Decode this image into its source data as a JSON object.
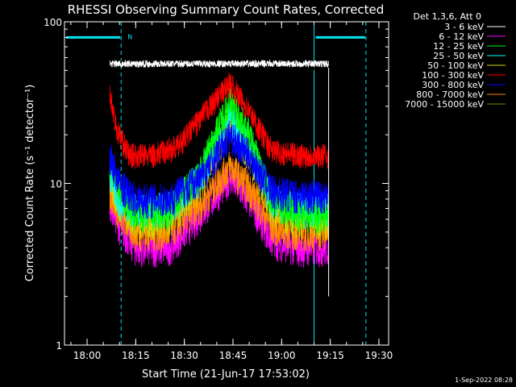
{
  "colors": {
    "background": "#000000",
    "axes": "#ffffff",
    "attenuator_marker": "#00e5ee",
    "series": [
      "#000000",
      "#ff00ff",
      "#00ff00",
      "#00ffff",
      "#d6d600",
      "#ff0000",
      "#0000ff",
      "#ff8800",
      "#808000"
    ]
  },
  "chart_data": {
    "type": "line",
    "title": "RHESSI Observing Summary Count Rates, Corrected",
    "xlabel": "Start Time (21-Jun-17 17:53:02)",
    "ylabel": "Corrected Count Rate (s⁻¹ detector⁻¹)",
    "y_scale": "log",
    "ylim": [
      1,
      100
    ],
    "y_ticks": [
      1,
      10,
      100
    ],
    "y_tick_labels": [
      "1",
      "10",
      "100"
    ],
    "x_ticks": [
      "18:00",
      "18:15",
      "18:30",
      "18:45",
      "19:00",
      "19:15",
      "19:30"
    ],
    "xlim": [
      "17:53:02",
      "19:33:00"
    ],
    "legend": {
      "header": "Det 1,3,6, Att 0",
      "position": "top-right, outside plot"
    },
    "series": [
      {
        "name": "3 - 6 keV",
        "color": "#000000",
        "start": "18:07:00",
        "end": "19:14:30",
        "times": [
          "18:07",
          "18:15",
          "18:30",
          "18:40",
          "18:44",
          "18:50",
          "19:00",
          "19:14"
        ],
        "values": [
          55,
          56,
          56,
          56,
          57,
          56,
          53,
          52
        ]
      },
      {
        "name": "6 - 12 keV",
        "color": "#ff00ff",
        "start": "18:07:00",
        "end": "19:14:30",
        "times": [
          "18:07",
          "18:10",
          "18:15",
          "18:25",
          "18:35",
          "18:44",
          "18:50",
          "18:57",
          "19:05",
          "19:14"
        ],
        "values": [
          8,
          5.5,
          4,
          4,
          6.5,
          11,
          8,
          4.5,
          4,
          4
        ]
      },
      {
        "name": "12 - 25 keV",
        "color": "#00ff00",
        "start": "18:07:00",
        "end": "19:14:30",
        "times": [
          "18:07",
          "18:10",
          "18:15",
          "18:25",
          "18:35",
          "18:44",
          "18:50",
          "18:57",
          "19:05",
          "19:14"
        ],
        "values": [
          14,
          9,
          6.5,
          6.5,
          12,
          33,
          20,
          8,
          6.5,
          6.5
        ]
      },
      {
        "name": "25 - 50 keV",
        "color": "#00ffff",
        "start": "18:07:00",
        "end": "19:14:30",
        "times": [
          "18:07",
          "18:10",
          "18:15",
          "18:25",
          "18:35",
          "18:44",
          "18:50",
          "18:57",
          "19:05",
          "19:14"
        ],
        "values": [
          12,
          8,
          7,
          7,
          11,
          27,
          17,
          8,
          7,
          7
        ]
      },
      {
        "name": "50 - 100 keV",
        "color": "#d6d600",
        "start": "18:07:00",
        "end": "19:14:30",
        "times": [
          "18:07",
          "18:10",
          "18:15",
          "18:25",
          "18:35",
          "18:44",
          "18:50",
          "18:57",
          "19:05",
          "19:14"
        ],
        "values": [
          11,
          7.5,
          6,
          6,
          10,
          24,
          15,
          7,
          6,
          6
        ]
      },
      {
        "name": "100 - 300 keV",
        "color": "#ff0000",
        "start": "18:07:00",
        "end": "19:14:30",
        "times": [
          "18:07",
          "18:09",
          "18:13",
          "18:20",
          "18:28",
          "18:36",
          "18:44",
          "18:50",
          "18:57",
          "19:05",
          "19:14"
        ],
        "values": [
          38,
          22,
          15,
          15,
          17,
          27,
          42,
          28,
          16,
          15,
          15
        ]
      },
      {
        "name": "300 - 800 keV",
        "color": "#0000ff",
        "start": "18:07:00",
        "end": "19:14:30",
        "times": [
          "18:07",
          "18:10",
          "18:15",
          "18:25",
          "18:35",
          "18:44",
          "18:50",
          "18:57",
          "19:05",
          "19:14"
        ],
        "values": [
          15,
          10,
          8,
          8,
          11,
          20,
          15,
          9,
          8.5,
          8.5
        ]
      },
      {
        "name": "800 - 7000 keV",
        "color": "#ff8800",
        "start": "18:07:00",
        "end": "19:14:30",
        "times": [
          "18:07",
          "18:10",
          "18:15",
          "18:25",
          "18:35",
          "18:44",
          "18:50",
          "18:57",
          "19:05",
          "19:14"
        ],
        "values": [
          9,
          6.5,
          5,
          5,
          7.5,
          13,
          9.5,
          5.5,
          5,
          5
        ]
      },
      {
        "name": "7000 - 15000 keV",
        "color": "#808000",
        "start": null,
        "end": null,
        "times": [],
        "values": []
      }
    ],
    "attenuator_marker": {
      "label": "N",
      "intervals": [
        [
          "17:53:02",
          "18:10:30"
        ],
        [
          "19:10:00",
          "19:26:00"
        ]
      ],
      "value": 80,
      "boundaries_solid": [
        "17:53:02",
        "19:10:00"
      ],
      "boundaries_dashed": [
        "18:10:30",
        "19:26:00"
      ]
    }
  },
  "footer": {
    "timestamp": "1-Sep-2022 08:28"
  }
}
